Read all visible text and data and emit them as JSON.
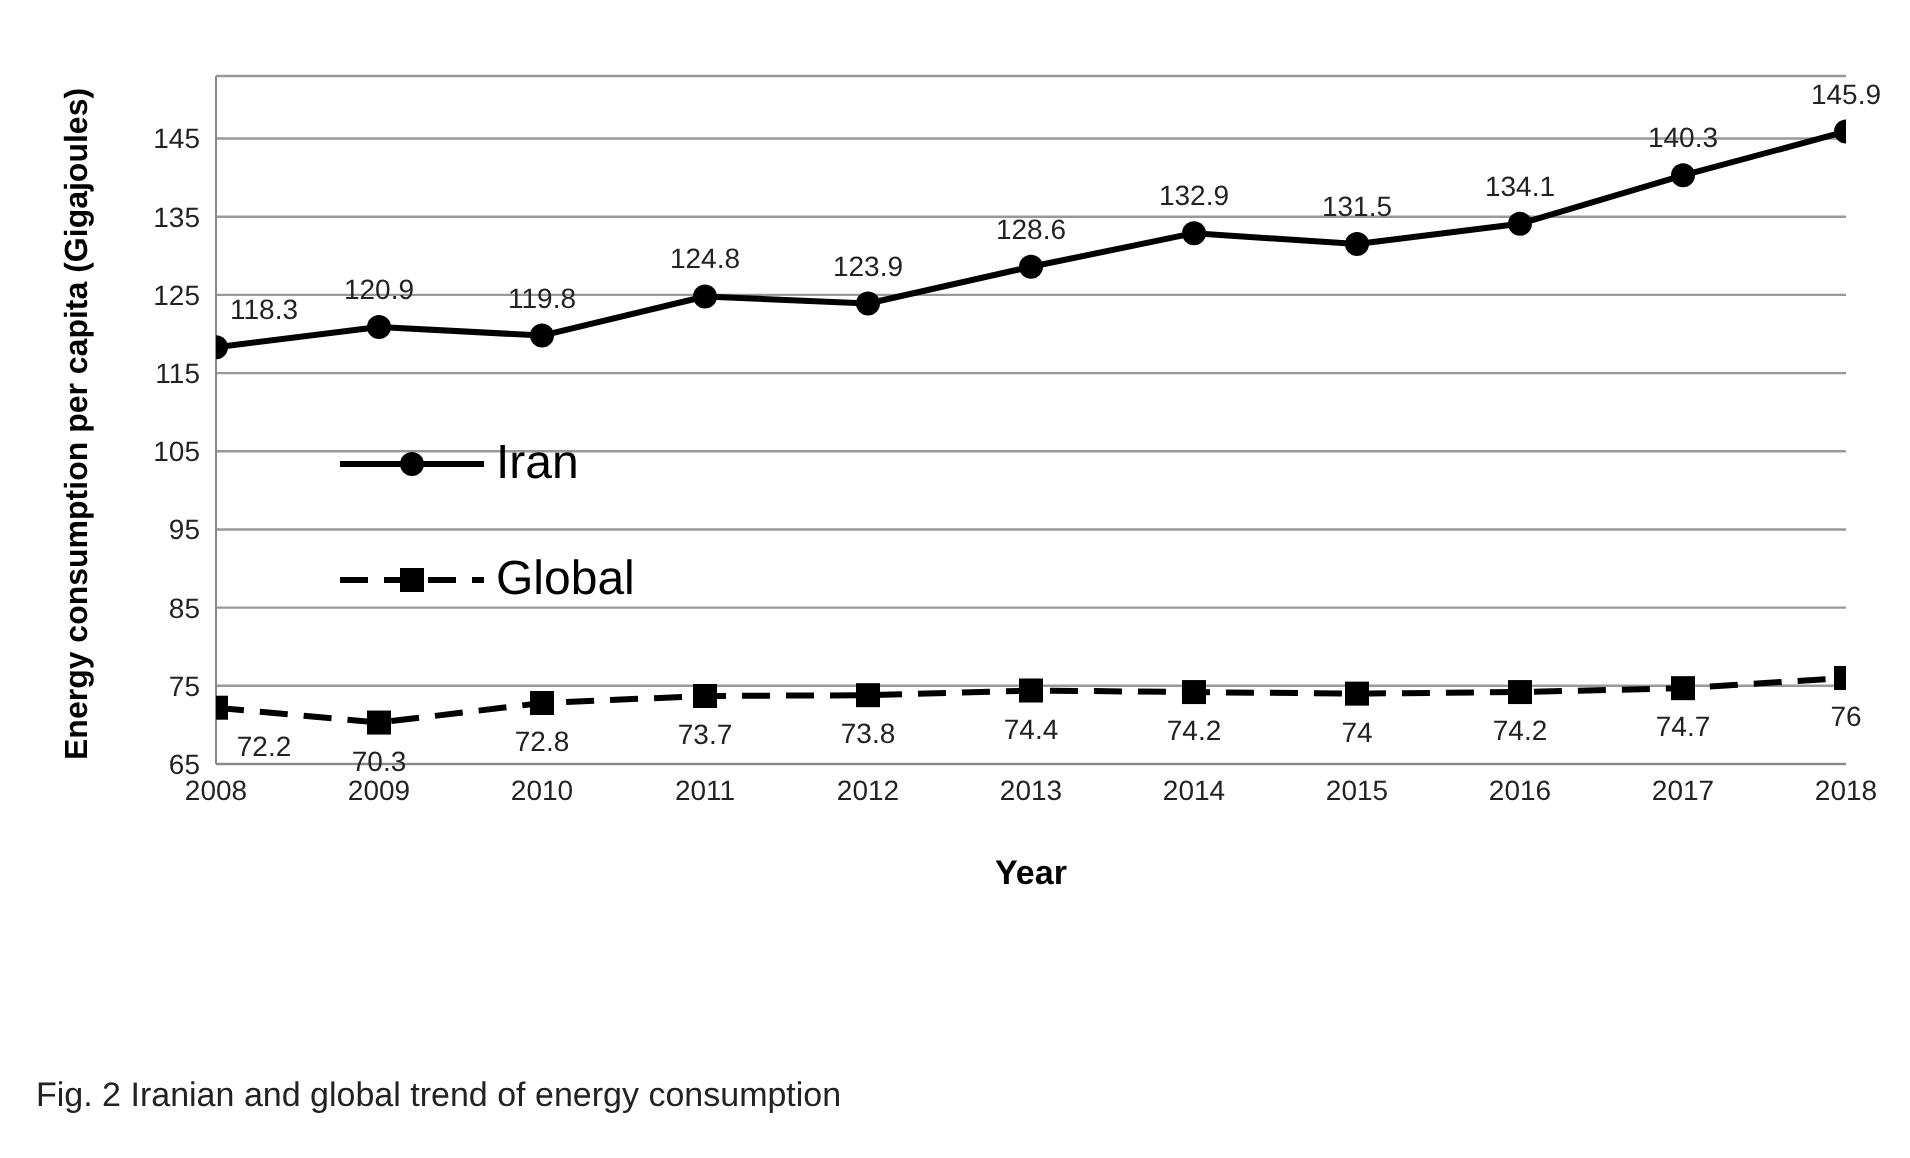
{
  "chart_data": {
    "type": "line",
    "xlabel": "Year",
    "ylabel": "Energy consumption per capita (Gigajoules)",
    "x": [
      2008,
      2009,
      2010,
      2011,
      2012,
      2013,
      2014,
      2015,
      2016,
      2017,
      2018
    ],
    "series": [
      {
        "name": "Iran",
        "color": "#000000",
        "values": [
          118.3,
          120.9,
          119.8,
          124.8,
          123.9,
          128.6,
          132.9,
          131.5,
          134.1,
          140.3,
          145.9
        ],
        "marker": "circle",
        "line_style": "solid"
      },
      {
        "name": "Global",
        "color": "#000000",
        "values": [
          72.2,
          70.3,
          72.8,
          73.7,
          73.8,
          74.4,
          74.2,
          74,
          74.2,
          74.7,
          76
        ],
        "marker": "square",
        "line_style": "dashed"
      }
    ],
    "xlim": [
      2008,
      2018
    ],
    "xticks": [
      2008,
      2009,
      2010,
      2011,
      2012,
      2013,
      2014,
      2015,
      2016,
      2017,
      2018
    ],
    "ylim": [
      65,
      153
    ],
    "yticks": [
      65,
      75,
      85,
      95,
      105,
      115,
      125,
      135,
      145
    ],
    "grid": "y",
    "legend": "left",
    "data_labels": true,
    "annotations": [
      "Fig. 2 Iranian and global trend of energy consumption"
    ]
  }
}
